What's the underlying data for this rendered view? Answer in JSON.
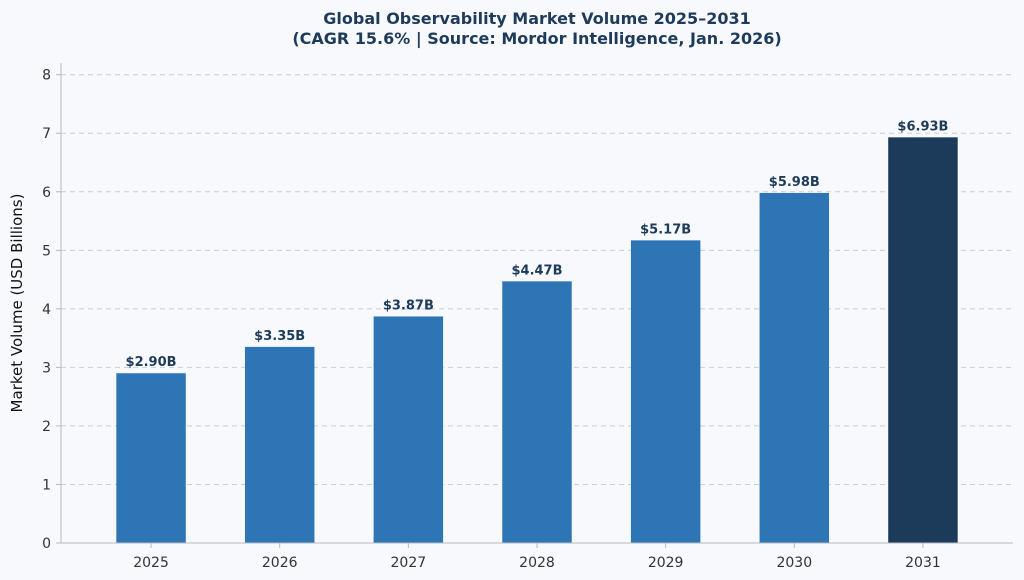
{
  "chart_data": {
    "type": "bar",
    "title": "Global Observability Market Volume 2025–2031",
    "subtitle": "(CAGR 15.6% | Source: Mordor Intelligence, Jan. 2026)",
    "xlabel": "",
    "ylabel": "Market Volume (USD Billions)",
    "categories": [
      "2025",
      "2026",
      "2027",
      "2028",
      "2029",
      "2030",
      "2031"
    ],
    "values": [
      2.9,
      3.35,
      3.87,
      4.47,
      5.17,
      5.98,
      6.93
    ],
    "data_labels": [
      "$2.90B",
      "$3.35B",
      "$3.87B",
      "$4.47B",
      "$5.17B",
      "$5.98B",
      "$6.93B"
    ],
    "ylim": [
      0,
      8.2
    ],
    "yticks": [
      0,
      1,
      2,
      3,
      4,
      5,
      6,
      7,
      8
    ],
    "grid": true,
    "legend": "none",
    "colors": {
      "bar": "#2e75b6",
      "highlight_bar": "#1c3a5a",
      "label": "#1f3b5a",
      "background": "#f7f9fd"
    },
    "highlight_category": "2031"
  }
}
